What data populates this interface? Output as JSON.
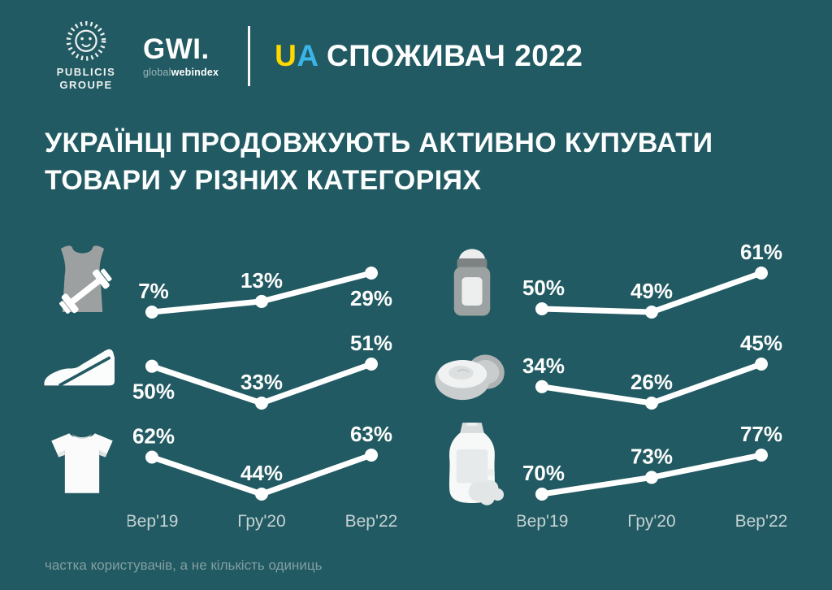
{
  "header": {
    "publicis": {
      "line1": "PUBLICIS",
      "line2": "GROUPE"
    },
    "gwi": {
      "wordmark": "GWI.",
      "sub_light": "global",
      "sub_bold": "webindex"
    },
    "title": {
      "letter_u": "U",
      "letter_a": "A",
      "rest": " СПОЖИВАЧ 2022"
    }
  },
  "heading": {
    "line1": "УКРАЇНЦІ ПРОДОВЖУЮТЬ АКТИВНО КУПУВАТИ",
    "line2": "ТОВАРИ У РІЗНИХ КАТЕГОРІЯХ"
  },
  "axis": {
    "categories": [
      "Вер'19",
      "Гру'20",
      "Вер'22"
    ]
  },
  "chart_data": [
    {
      "type": "line",
      "name": "sportswear",
      "icon": "sportswear-dumbbell-icon",
      "categories": [
        "Вер'19",
        "Гру'20",
        "Вер'22"
      ],
      "values": [
        7,
        13,
        29
      ],
      "unit": "%",
      "label_positions": [
        "above",
        "above",
        "below"
      ],
      "legend_position": "none",
      "grid": false
    },
    {
      "type": "line",
      "name": "shoes",
      "icon": "wedge-shoe-icon",
      "categories": [
        "Вер'19",
        "Гру'20",
        "Вер'22"
      ],
      "values": [
        50,
        33,
        51
      ],
      "unit": "%",
      "label_positions": [
        "below",
        "above",
        "above"
      ],
      "legend_position": "none",
      "grid": false
    },
    {
      "type": "line",
      "name": "t-shirts",
      "icon": "tshirt-icon",
      "categories": [
        "Вер'19",
        "Гру'20",
        "Вер'22"
      ],
      "values": [
        62,
        44,
        63
      ],
      "unit": "%",
      "label_positions": [
        "above",
        "above",
        "above"
      ],
      "legend_position": "none",
      "grid": false
    },
    {
      "type": "line",
      "name": "deodorant",
      "icon": "deodorant-icon",
      "categories": [
        "Вер'19",
        "Гру'20",
        "Вер'22"
      ],
      "values": [
        50,
        49,
        61
      ],
      "unit": "%",
      "label_positions": [
        "above",
        "above",
        "above"
      ],
      "legend_position": "none",
      "grid": false
    },
    {
      "type": "line",
      "name": "face-cream",
      "icon": "cream-jar-icon",
      "categories": [
        "Вер'19",
        "Гру'20",
        "Вер'22"
      ],
      "values": [
        34,
        26,
        45
      ],
      "unit": "%",
      "label_positions": [
        "above",
        "above",
        "above"
      ],
      "legend_position": "none",
      "grid": false
    },
    {
      "type": "line",
      "name": "shampoo",
      "icon": "shampoo-bottle-icon",
      "categories": [
        "Вер'19",
        "Гру'20",
        "Вер'22"
      ],
      "values": [
        70,
        73,
        77
      ],
      "unit": "%",
      "label_positions": [
        "above",
        "above",
        "above"
      ],
      "legend_position": "none",
      "grid": false
    }
  ],
  "footnote": "частка користувачів, а не кількість одиниць",
  "colors": {
    "background": "#215A62",
    "accent_yellow": "#FFD800",
    "accent_blue": "#3BB4E8",
    "line": "#FFFFFF",
    "axis_label": "#C5D2D4",
    "footnote_text": "#829EA2"
  }
}
